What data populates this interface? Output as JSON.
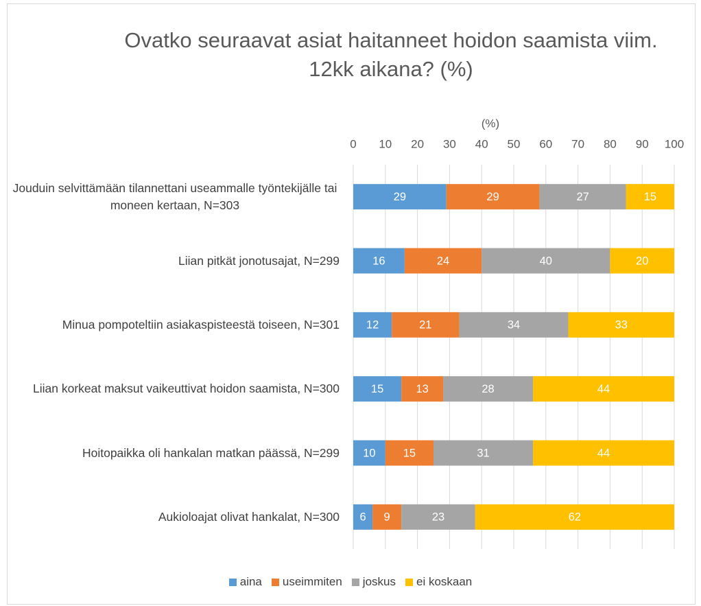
{
  "chart_data": {
    "type": "stacked_bar_horizontal",
    "title": "Ovatko seuraavat asiat haitanneet hoidon saamista viim. 12kk aikana? (%)",
    "x_label": "(%)",
    "categories": [
      "Jouduin selvittämään tilannettani useammalle työntekijälle tai moneen kertaan, N=303",
      "Liian pitkät jonotusajat, N=299",
      "Minua pompoteltiin asiakaspisteestä toiseen, N=301",
      "Liian korkeat maksut vaikeuttivat hoidon saamista, N=300",
      "Hoitopaikka oli hankalan matkan päässä, N=299",
      "Aukioloajat olivat hankalat, N=300"
    ],
    "series": [
      {
        "name": "aina",
        "color": "#5b9bd5",
        "values": [
          29,
          16,
          12,
          15,
          10,
          6
        ]
      },
      {
        "name": "useimmiten",
        "color": "#ed7d31",
        "values": [
          29,
          24,
          21,
          13,
          15,
          9
        ]
      },
      {
        "name": "joskus",
        "color": "#a5a5a5",
        "values": [
          27,
          40,
          34,
          28,
          31,
          23
        ]
      },
      {
        "name": "ei koskaan",
        "color": "#ffc000",
        "values": [
          15,
          20,
          33,
          44,
          44,
          62
        ]
      }
    ],
    "xlim": [
      0,
      100
    ],
    "xticks": [
      0,
      10,
      20,
      30,
      40,
      50,
      60,
      70,
      80,
      90,
      100
    ],
    "grid": true,
    "legend": "bottom"
  }
}
